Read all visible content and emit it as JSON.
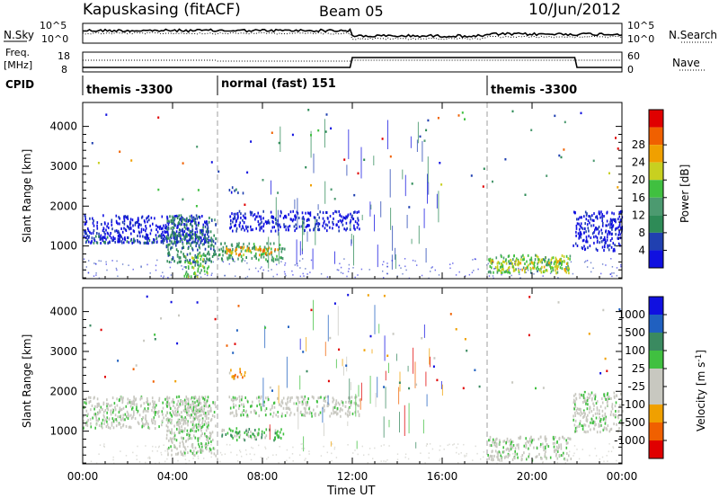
{
  "header": {
    "station": "Kapuskasing (fitACF)",
    "beam": "Beam 05",
    "date": "10/Jun/2012"
  },
  "noise_panel": {
    "left_label": "N.Sky",
    "right_label": "N.Search",
    "ticks": [
      "10^5",
      "10^0"
    ]
  },
  "freq_panel": {
    "left_label_1": "Freq.",
    "left_label_2": "[MHz]",
    "right_label": "Nave",
    "left_ticks": [
      "18",
      "8"
    ],
    "right_ticks": [
      "60",
      "0"
    ]
  },
  "cpid_panel": {
    "label": "CPID",
    "segments": [
      "themis -3300",
      "normal (fast) 151",
      "themis -3300"
    ]
  },
  "time_axis": {
    "title": "Time UT",
    "ticks": [
      "00:00",
      "04:00",
      "08:00",
      "12:00",
      "16:00",
      "20:00",
      "00:00"
    ]
  },
  "colors": {
    "power": [
      "#1010e0",
      "#2040b0",
      "#2e8b57",
      "#4c9a70",
      "#40c040",
      "#c8d020",
      "#f0a000",
      "#f06000",
      "#e00000"
    ],
    "velocity": [
      "#1010e0",
      "#2060c0",
      "#3a8a60",
      "#40c040",
      "#c8c8c0",
      "#c8c8c0",
      "#f0a000",
      "#f06000",
      "#e00000"
    ]
  },
  "chart_data": [
    {
      "type": "heatmap",
      "name": "power",
      "xlabel": "Time UT",
      "ylabel": "Slant Range [km]",
      "xlim": [
        0,
        24
      ],
      "ylim": [
        180,
        4600
      ],
      "yticks": [
        "1000",
        "2000",
        "3000",
        "4000"
      ],
      "colorbar_label": "Power [dB]",
      "colorbar_ticks": [
        "4",
        "8",
        "12",
        "16",
        "20",
        "24",
        "28"
      ],
      "regions": [
        {
          "x": [
            0.0,
            5.6
          ],
          "y": [
            1100,
            1800
          ],
          "level": 0
        },
        {
          "x": [
            0.1,
            5.5
          ],
          "y": [
            1100,
            1300
          ],
          "level": 1
        },
        {
          "x": [
            3.7,
            5.9
          ],
          "y": [
            600,
            1800
          ],
          "level": 2
        },
        {
          "x": [
            4.5,
            5.6
          ],
          "y": [
            250,
            800
          ],
          "level": 4
        },
        {
          "x": [
            6.0,
            9.0
          ],
          "y": [
            650,
            1100
          ],
          "level": 3
        },
        {
          "x": [
            6.3,
            8.8
          ],
          "y": [
            800,
            1000
          ],
          "level": 6
        },
        {
          "x": [
            6.5,
            12.3
          ],
          "y": [
            1400,
            1900
          ],
          "level": 0
        },
        {
          "x": [
            6.5,
            7.2
          ],
          "y": [
            2350,
            2500
          ],
          "level": 1
        },
        {
          "x": [
            18.0,
            21.7
          ],
          "y": [
            350,
            800
          ],
          "level": 4
        },
        {
          "x": [
            18.1,
            21.6
          ],
          "y": [
            400,
            700
          ],
          "level": 5
        },
        {
          "x": [
            21.8,
            24.0
          ],
          "y": [
            900,
            1900
          ],
          "level": 0
        }
      ]
    },
    {
      "type": "heatmap",
      "name": "velocity",
      "xlabel": "Time UT",
      "ylabel": "Slant Range [km]",
      "xlim": [
        0,
        24
      ],
      "ylim": [
        180,
        4600
      ],
      "yticks": [
        "1000",
        "2000",
        "3000",
        "4000"
      ],
      "colorbar_label": "Velocity [m s-1]",
      "colorbar_ticks": [
        "1000",
        "500",
        "100",
        "25",
        "-25",
        "-100",
        "-500",
        "-1000"
      ],
      "regions": [
        {
          "x": [
            0.0,
            5.6
          ],
          "y": [
            1100,
            1900
          ],
          "level": 4
        },
        {
          "x": [
            3.7,
            5.9
          ],
          "y": [
            400,
            1800
          ],
          "level": 4
        },
        {
          "x": [
            6.0,
            9.0
          ],
          "y": [
            800,
            1100
          ],
          "level": 3
        },
        {
          "x": [
            6.5,
            12.3
          ],
          "y": [
            1400,
            1900
          ],
          "level": 4
        },
        {
          "x": [
            6.5,
            7.2
          ],
          "y": [
            2350,
            2600
          ],
          "level": 6
        },
        {
          "x": [
            18.0,
            21.7
          ],
          "y": [
            300,
            900
          ],
          "level": 4
        },
        {
          "x": [
            21.8,
            24.0
          ],
          "y": [
            1000,
            2000
          ],
          "level": 4
        }
      ]
    }
  ]
}
